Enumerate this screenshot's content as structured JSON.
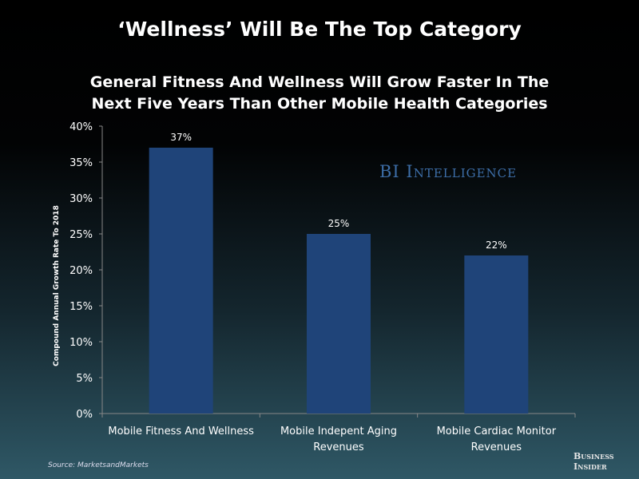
{
  "header": {
    "title": "‘Wellness’ Will Be The Top Category"
  },
  "chart_data": {
    "type": "bar",
    "title": "General Fitness And Wellness Will Grow Faster In The Next Five Years Than Other Mobile Health Categories",
    "title_lines": [
      "General Fitness And Wellness Will Grow Faster In The",
      "Next Five Years Than Other Mobile Health Categories"
    ],
    "categories": [
      [
        "Mobile Fitness And Wellness"
      ],
      [
        "Mobile Indepent Aging",
        "Revenues"
      ],
      [
        "Mobile Cardiac Monitor",
        "Revenues"
      ]
    ],
    "values": [
      37,
      25,
      22
    ],
    "data_labels": [
      "37%",
      "25%",
      "22%"
    ],
    "xlabel": "",
    "ylabel": "Compound Annual Growth Rate To 2018",
    "ylim": [
      0,
      40
    ],
    "yticks": [
      0,
      5,
      10,
      15,
      20,
      25,
      30,
      35,
      40
    ],
    "ytick_labels": [
      "0%",
      "5%",
      "10%",
      "15%",
      "20%",
      "25%",
      "30%",
      "35%",
      "40%"
    ],
    "grid": false,
    "bar_color": "#1f4479"
  },
  "watermark": "BI Intelligence",
  "footer": {
    "source": "Source:  MarketsandMarkets",
    "logo_line1": "Business",
    "logo_line2": "Insider"
  }
}
